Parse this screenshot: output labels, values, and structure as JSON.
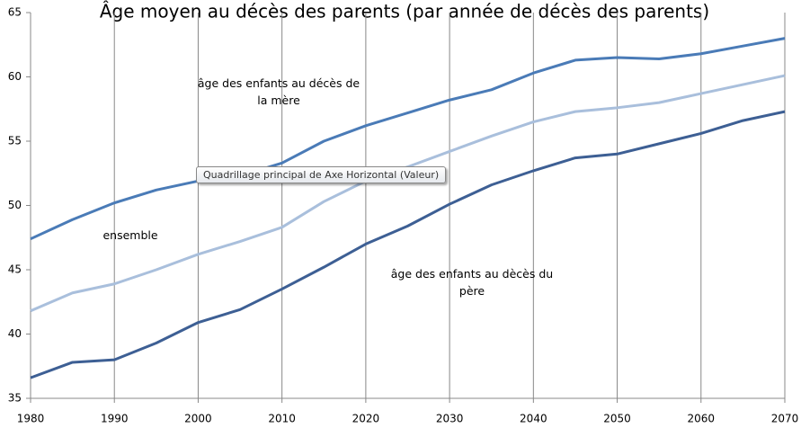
{
  "chart_data": {
    "type": "line",
    "title": "Âge moyen au décès des parents (par année de décès des parents)",
    "annotations": [
      "Quadrillage principal de Axe Horizontal (Valeur)"
    ],
    "x": [
      1980,
      1985,
      1990,
      1995,
      2000,
      2005,
      2010,
      2015,
      2020,
      2025,
      2030,
      2035,
      2040,
      2045,
      2050,
      2055,
      2060,
      2065,
      2070
    ],
    "series": [
      {
        "name": "âge des enfants au décès de la mère",
        "color": "#4a7bb7",
        "values": [
          47.4,
          48.9,
          50.2,
          51.2,
          51.9,
          52.3,
          53.3,
          55.0,
          56.2,
          57.2,
          58.2,
          59.0,
          60.3,
          61.3,
          61.5,
          61.4,
          61.8,
          62.4,
          63.0
        ]
      },
      {
        "name": "ensemble",
        "color": "#a9bfdc",
        "values": [
          41.8,
          43.2,
          43.9,
          45.0,
          46.2,
          47.2,
          48.3,
          50.3,
          51.9,
          53.0,
          54.2,
          55.4,
          56.5,
          57.3,
          57.6,
          58.0,
          58.7,
          59.4,
          60.1
        ]
      },
      {
        "name": "âge des enfants au dècès du père",
        "color": "#3d5f94",
        "values": [
          36.6,
          37.8,
          38.0,
          39.3,
          40.9,
          41.9,
          43.5,
          45.2,
          47.0,
          48.4,
          50.1,
          51.6,
          52.7,
          53.7,
          54.0,
          54.8,
          55.6,
          56.6,
          57.3
        ]
      }
    ],
    "xlim": [
      1980,
      2070
    ],
    "xticks": [
      1980,
      1990,
      2000,
      2010,
      2020,
      2030,
      2040,
      2050,
      2060,
      2070
    ],
    "ylim": [
      35,
      65
    ],
    "yticks": [
      35,
      40,
      45,
      50,
      55,
      60,
      65
    ],
    "grid": "x"
  }
}
